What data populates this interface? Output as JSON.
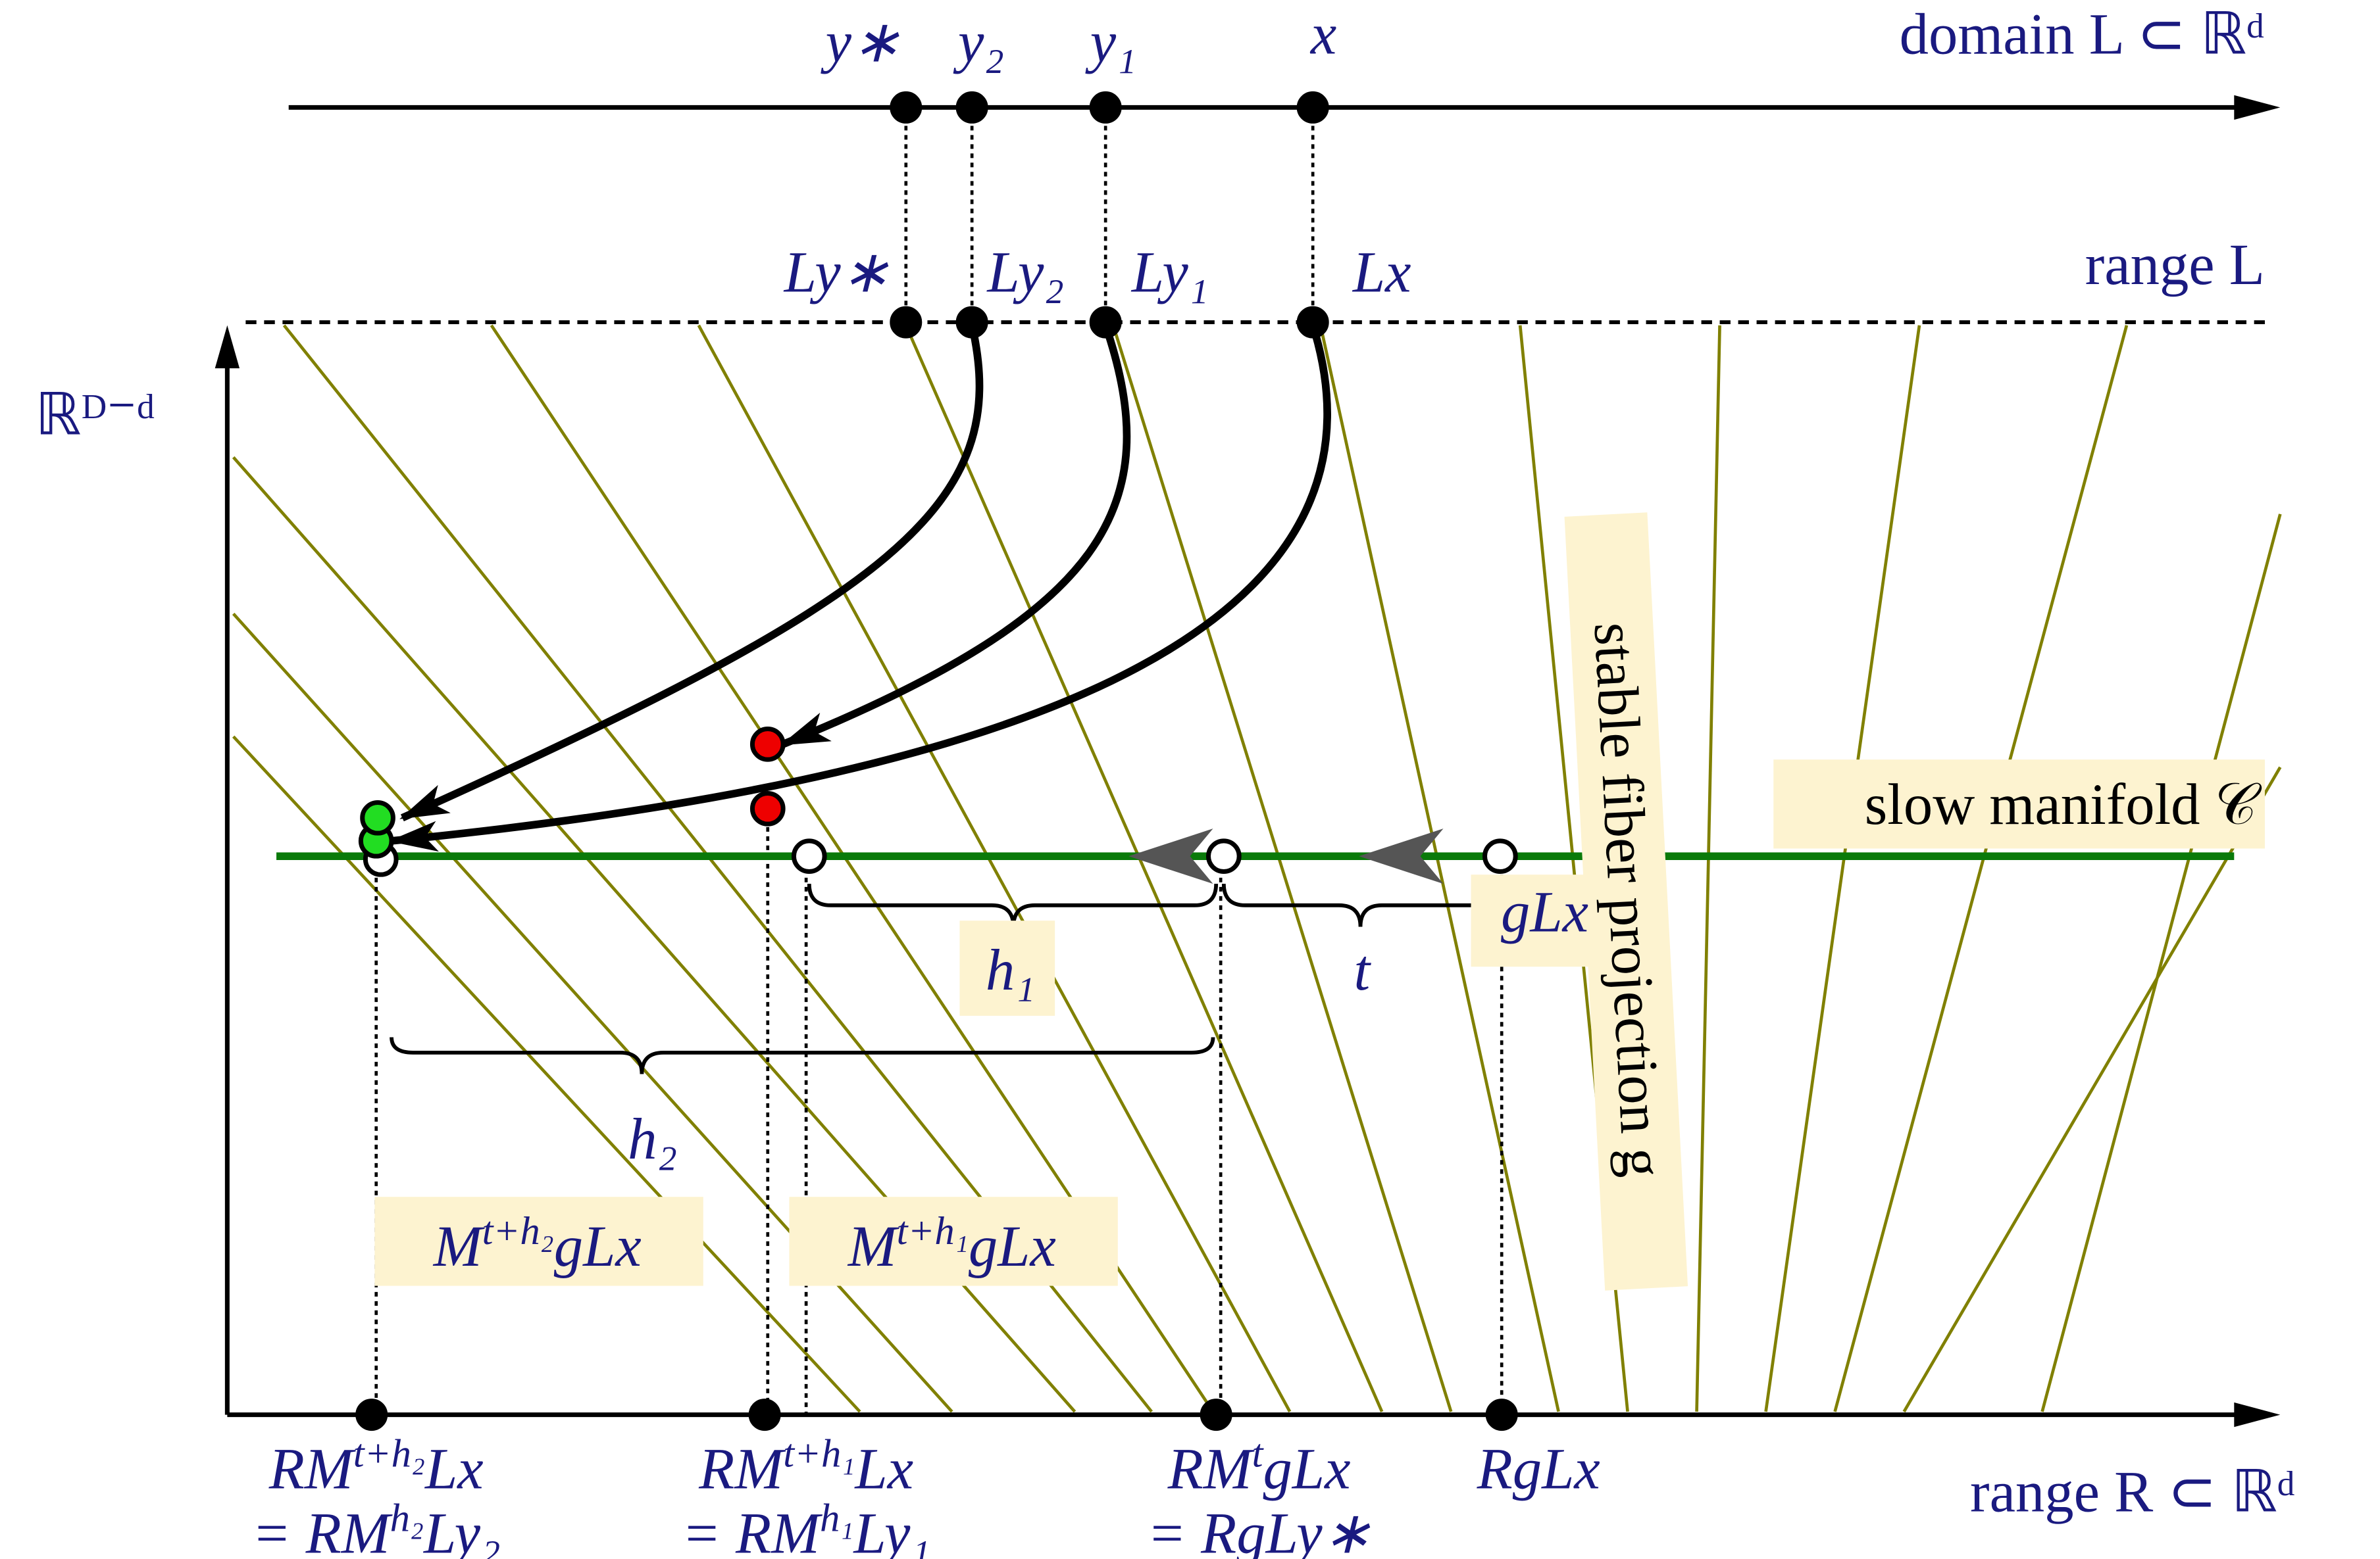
{
  "axes": {
    "domain": "domain L ⊂ ℝᵈ",
    "range_L": "range L",
    "range_R": "range R ⊂ ℝᵈ",
    "vertical": "ℝᴰ⁻ᵈ"
  },
  "domain_points": [
    "y∗",
    "y₂",
    "y₁",
    "x"
  ],
  "range_points": [
    "Ly∗",
    "Ly₂",
    "Ly₁",
    "Lx"
  ],
  "slow_manifold": "slow manifold 𝒞",
  "fiber": "stable fiber projection g",
  "braces": [
    "h₁",
    "t",
    "h₂"
  ],
  "point_labels": {
    "gLx": {
      "pre": "gLx"
    },
    "m2": {
      "pre": "M",
      "sup": "t+h₂",
      "post": "gLx"
    },
    "m1": {
      "pre": "M",
      "sup": "t+h₁",
      "post": "gLx"
    }
  },
  "bottom_labels": [
    [
      {
        "pre": "RM",
        "sup": "t+h₂",
        "post": "Lx"
      },
      {
        "pre": "= RM",
        "sup": "h₂",
        "post": "Ly₂"
      }
    ],
    [
      {
        "pre": "RM",
        "sup": "t+h₁",
        "post": "Lx"
      },
      {
        "pre": "= RM",
        "sup": "h₁",
        "post": "Ly₁"
      }
    ],
    [
      {
        "pre": "RM",
        "sup": "t",
        "post": "gLx"
      },
      {
        "pre": "= RgLy∗"
      }
    ],
    [
      {
        "pre": "RgLx"
      }
    ]
  ]
}
